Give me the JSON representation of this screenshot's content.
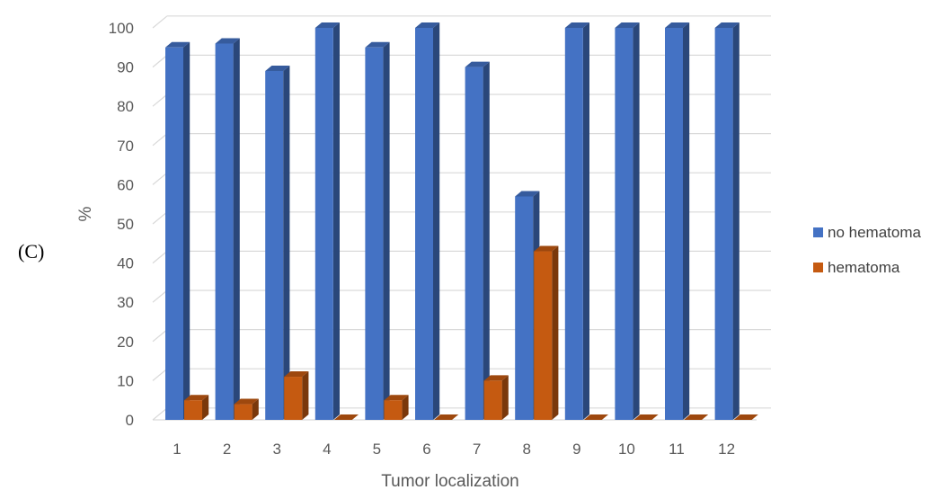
{
  "panel_label": "(C)",
  "chart_data": {
    "type": "bar",
    "title": "",
    "xlabel": "Tumor localization",
    "ylabel": "%",
    "ylim": [
      0,
      100
    ],
    "yticks": [
      0,
      10,
      20,
      30,
      40,
      50,
      60,
      70,
      80,
      90,
      100
    ],
    "categories": [
      "1",
      "2",
      "3",
      "4",
      "5",
      "6",
      "7",
      "8",
      "9",
      "10",
      "11",
      "12"
    ],
    "grid": true,
    "legend_position": "right",
    "style": "3d-column",
    "series": [
      {
        "name": "no hematoma",
        "color": "#4472C4",
        "values": [
          95,
          96,
          89,
          100,
          95,
          100,
          90,
          57,
          100,
          100,
          100,
          100
        ]
      },
      {
        "name": "hematoma",
        "color": "#C55A11",
        "values": [
          5,
          4,
          11,
          0,
          5,
          0,
          10,
          43,
          0,
          0,
          0,
          0
        ]
      }
    ]
  }
}
